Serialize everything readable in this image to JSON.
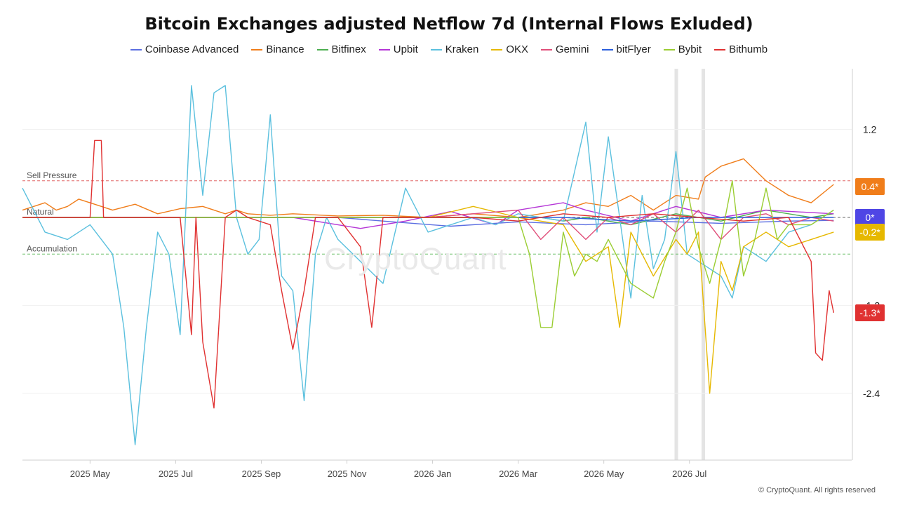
{
  "title": "Bitcoin Exchanges adjusted Netflow 7d (Internal Flows Exluded)",
  "watermark": "CryptoQuant",
  "footer": "© CryptoQuant. All rights reserved",
  "chart_data": {
    "type": "line",
    "title": "Bitcoin Exchanges adjusted Netflow 7d (Internal Flows Exluded)",
    "x_tick_labels": [
      "2025 May",
      "2025 Jul",
      "2025 Sep",
      "2025 Nov",
      "2026 Jan",
      "2026 Mar",
      "2026 May",
      "2026 Jul"
    ],
    "y_ticks": [
      1.2,
      -1.2,
      -2.4
    ],
    "y_tick_labels": [
      "1.2",
      "-1.2",
      "-2.4"
    ],
    "ylim": [
      -3.3,
      2.0
    ],
    "grid": true,
    "legend_position": "top-center",
    "reference_lines": [
      {
        "label": "Sell Pressure",
        "value": 0.5,
        "color": "#e06666"
      },
      {
        "label": "Natural",
        "value": 0,
        "color": "#666666"
      },
      {
        "label": "Accumulation",
        "value": -0.5,
        "color": "#6abf69"
      }
    ],
    "highlight_bands_x": [
      290,
      302
    ],
    "badges": [
      {
        "label": "0.4*",
        "value": 0.42,
        "color": "#f07d1a"
      },
      {
        "label": "0*",
        "value": 0.0,
        "color": "#4f46e5"
      },
      {
        "label": "-0.2*",
        "value": -0.2,
        "color": "#e6b800"
      },
      {
        "label": "-1.3*",
        "value": -1.3,
        "color": "#e03131"
      }
    ],
    "series": [
      {
        "name": "Coinbase Advanced",
        "color": "#5b6ee1",
        "x": [
          0,
          60,
          120,
          140,
          160,
          190,
          220,
          250,
          280,
          310,
          340,
          360
        ],
        "values": [
          0,
          0,
          0,
          0,
          -0.05,
          -0.12,
          -0.06,
          -0.1,
          -0.05,
          -0.08,
          -0.05,
          -0.04
        ]
      },
      {
        "name": "Binance",
        "color": "#f07d1a",
        "x": [
          0,
          5,
          10,
          15,
          20,
          25,
          30,
          40,
          50,
          60,
          70,
          80,
          90,
          95,
          100,
          110,
          120,
          140,
          160,
          180,
          200,
          220,
          240,
          250,
          260,
          270,
          280,
          290,
          300,
          303,
          310,
          320,
          330,
          340,
          350,
          360
        ],
        "values": [
          0.1,
          0.15,
          0.2,
          0.1,
          0.15,
          0.25,
          0.2,
          0.1,
          0.18,
          0.05,
          0.12,
          0.15,
          0.05,
          0.1,
          0.05,
          0.03,
          0.05,
          0.02,
          0.03,
          0.0,
          0.05,
          0.0,
          0.1,
          0.2,
          0.15,
          0.3,
          0.1,
          0.3,
          0.25,
          0.55,
          0.7,
          0.8,
          0.5,
          0.3,
          0.2,
          0.45
        ]
      },
      {
        "name": "Bitfinex",
        "color": "#4caf50",
        "x": [
          0,
          60,
          120,
          180,
          230,
          240,
          250,
          270,
          290,
          310,
          330,
          350,
          360
        ],
        "values": [
          0,
          0,
          0,
          0,
          0,
          -0.05,
          0.0,
          -0.1,
          0.05,
          -0.05,
          0.1,
          0.0,
          0.05
        ]
      },
      {
        "name": "Upbit",
        "color": "#b536d6",
        "x": [
          0,
          60,
          120,
          150,
          170,
          190,
          210,
          220,
          230,
          240,
          250,
          270,
          290,
          310,
          330,
          360
        ],
        "values": [
          0,
          0,
          0,
          -0.15,
          -0.05,
          0.08,
          -0.1,
          0.1,
          0.15,
          0.2,
          0.1,
          -0.05,
          0.15,
          0.0,
          0.1,
          0.05
        ]
      },
      {
        "name": "Kraken",
        "color": "#5bc0de",
        "x": [
          0,
          10,
          20,
          30,
          40,
          45,
          50,
          55,
          60,
          65,
          70,
          75,
          80,
          85,
          90,
          95,
          100,
          105,
          110,
          115,
          120,
          125,
          130,
          135,
          140,
          150,
          160,
          170,
          180,
          190,
          200,
          210,
          220,
          230,
          240,
          250,
          255,
          260,
          265,
          270,
          275,
          280,
          285,
          290,
          295,
          300,
          310,
          315,
          320,
          330,
          340,
          350,
          360
        ],
        "values": [
          0.4,
          -0.2,
          -0.3,
          -0.1,
          -0.5,
          -1.5,
          -3.1,
          -1.5,
          -0.2,
          -0.5,
          -1.6,
          1.8,
          0.3,
          1.7,
          1.8,
          0.0,
          -0.5,
          -0.3,
          1.4,
          -0.8,
          -1.0,
          -2.5,
          -0.5,
          0.0,
          -0.3,
          -0.6,
          -0.9,
          0.4,
          -0.2,
          -0.1,
          0.0,
          -0.1,
          0.05,
          0.0,
          -0.05,
          1.3,
          -0.2,
          1.1,
          0.0,
          -1.1,
          0.3,
          -0.7,
          -0.3,
          0.9,
          -0.5,
          -0.6,
          -0.8,
          -1.1,
          -0.4,
          -0.6,
          -0.2,
          -0.1,
          0.1
        ]
      },
      {
        "name": "OKX",
        "color": "#e6b800",
        "x": [
          0,
          60,
          120,
          180,
          200,
          220,
          240,
          250,
          260,
          265,
          270,
          280,
          290,
          295,
          300,
          305,
          310,
          315,
          320,
          330,
          340,
          350,
          360
        ],
        "values": [
          0,
          0,
          0,
          0,
          0.15,
          0.0,
          -0.1,
          -0.6,
          -0.4,
          -1.5,
          -0.2,
          -0.8,
          -0.3,
          -0.5,
          -0.2,
          -2.4,
          -0.6,
          -1.0,
          -0.4,
          -0.2,
          -0.4,
          -0.3,
          -0.2
        ]
      },
      {
        "name": "Gemini",
        "color": "#e04f7a",
        "x": [
          0,
          60,
          120,
          180,
          220,
          230,
          240,
          250,
          260,
          270,
          280,
          290,
          300,
          310,
          320,
          330,
          340,
          350,
          360
        ],
        "values": [
          0,
          0,
          0,
          0,
          0.1,
          -0.3,
          0.0,
          -0.3,
          0.0,
          -0.1,
          0.05,
          -0.2,
          0.1,
          -0.3,
          0.0,
          0.05,
          -0.1,
          0.0,
          -0.05
        ]
      },
      {
        "name": "bitFlyer",
        "color": "#2b5fdc",
        "x": [
          0,
          60,
          120,
          180,
          240,
          270,
          300,
          330,
          360
        ],
        "values": [
          0,
          0,
          0,
          0,
          0,
          -0.05,
          0.0,
          0.0,
          0.0
        ]
      },
      {
        "name": "Bybit",
        "color": "#9acd32",
        "x": [
          0,
          60,
          120,
          180,
          220,
          225,
          230,
          235,
          240,
          245,
          250,
          255,
          260,
          270,
          280,
          285,
          290,
          295,
          300,
          305,
          310,
          315,
          320,
          325,
          330,
          335,
          340,
          350,
          360
        ],
        "values": [
          0,
          0,
          0,
          0,
          0.0,
          -0.5,
          -1.5,
          -1.5,
          -0.2,
          -0.8,
          -0.5,
          -0.6,
          -0.3,
          -0.9,
          -1.1,
          -0.6,
          -0.2,
          0.4,
          -0.4,
          -0.9,
          -0.3,
          0.5,
          -0.8,
          -0.3,
          0.4,
          -0.3,
          -0.1,
          -0.1,
          0.1
        ]
      },
      {
        "name": "Bithumb",
        "color": "#e03131",
        "x": [
          0,
          20,
          30,
          32,
          35,
          36,
          40,
          50,
          60,
          70,
          75,
          77,
          80,
          85,
          90,
          95,
          100,
          110,
          115,
          120,
          125,
          130,
          140,
          150,
          155,
          160,
          170,
          180,
          200,
          220,
          240,
          260,
          280,
          300,
          320,
          340,
          350,
          352,
          355,
          358,
          360
        ],
        "values": [
          0,
          0,
          0,
          1.05,
          1.05,
          0.0,
          0.0,
          0.0,
          0.0,
          0.0,
          -1.6,
          0.0,
          -1.7,
          -2.6,
          0.0,
          0.1,
          0.0,
          -0.1,
          -1.0,
          -1.8,
          -1.0,
          0.0,
          0.0,
          -0.4,
          -1.5,
          0.0,
          0.0,
          0.0,
          0.0,
          -0.05,
          0.05,
          0.0,
          0.05,
          0.0,
          -0.05,
          0.0,
          -0.6,
          -1.85,
          -1.95,
          -1.0,
          -1.3
        ]
      }
    ]
  }
}
